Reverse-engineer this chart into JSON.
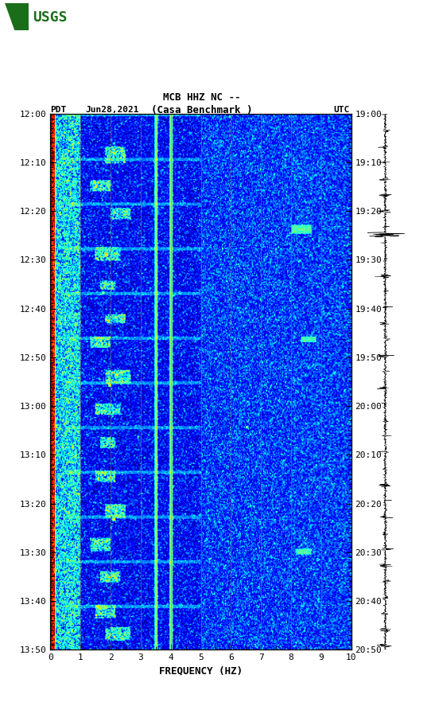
{
  "title_line1": "MCB HHZ NC --",
  "title_line2": "(Casa Benchmark )",
  "left_label": "PDT",
  "date_label": "Jun28,2021",
  "right_label": "UTC",
  "freq_label": "FREQUENCY (HZ)",
  "freq_min": 0,
  "freq_max": 10,
  "time_ticks_left": [
    "12:00",
    "12:10",
    "12:20",
    "12:30",
    "12:40",
    "12:50",
    "13:00",
    "13:10",
    "13:20",
    "13:30",
    "13:40",
    "13:50"
  ],
  "time_ticks_right": [
    "19:00",
    "19:10",
    "19:20",
    "19:30",
    "19:40",
    "19:50",
    "20:00",
    "20:10",
    "20:20",
    "20:30",
    "20:40",
    "20:50"
  ],
  "freq_ticks": [
    0,
    1,
    2,
    3,
    4,
    5,
    6,
    7,
    8,
    9,
    10
  ],
  "vertical_lines_freq": [
    1.0,
    2.0,
    3.0,
    4.0,
    5.0,
    6.0,
    7.0,
    8.0,
    9.0
  ],
  "vert_line_bright_freq": [
    3.5,
    4.0
  ],
  "colormap": "jet",
  "background_color": "#ffffff",
  "usgs_green": "#1a6e1a",
  "font_family": "monospace",
  "font_size_title": 9,
  "font_size_tick": 8,
  "font_size_label": 9
}
